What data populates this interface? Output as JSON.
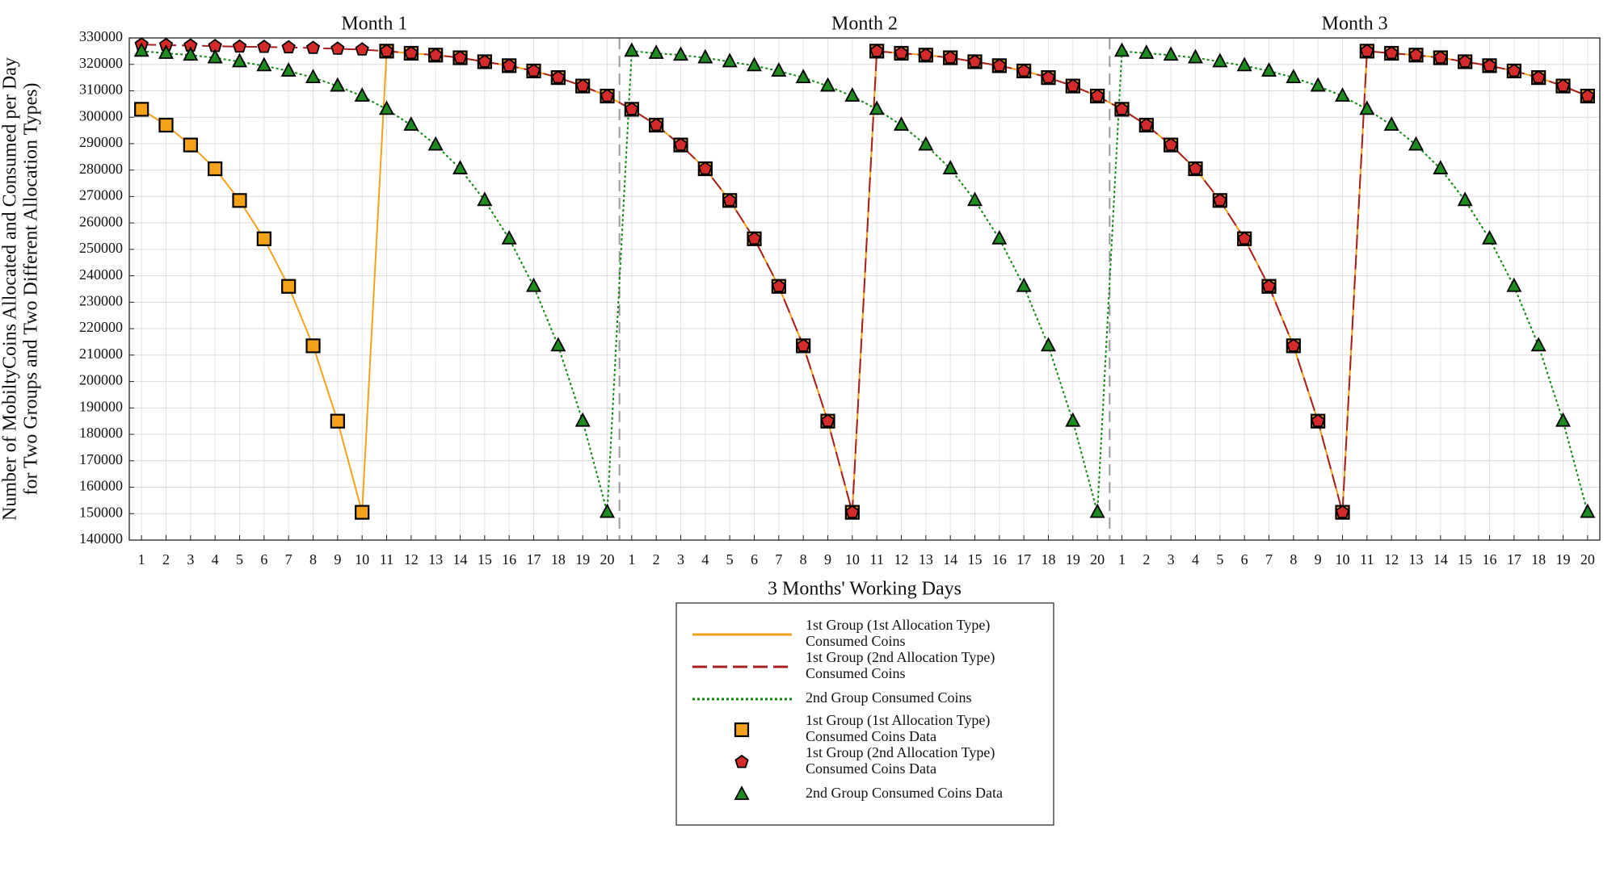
{
  "chart_data": {
    "type": "line",
    "panels": [
      "Month 1",
      "Month 2",
      "Month 3"
    ],
    "xlabel": "3 Months' Working Days",
    "ylabel": [
      "Number of MobiltyCoins Allocated and Consumed per Day",
      "for Two Groups and Two Different Allocation Types)"
    ],
    "categories": [
      1,
      2,
      3,
      4,
      5,
      6,
      7,
      8,
      9,
      10,
      11,
      12,
      13,
      14,
      15,
      16,
      17,
      18,
      19,
      20,
      1,
      2,
      3,
      4,
      5,
      6,
      7,
      8,
      9,
      10,
      11,
      12,
      13,
      14,
      15,
      16,
      17,
      18,
      19,
      20,
      1,
      2,
      3,
      4,
      5,
      6,
      7,
      8,
      9,
      10,
      11,
      12,
      13,
      14,
      15,
      16,
      17,
      18,
      19,
      20
    ],
    "ylim": [
      140000,
      330000
    ],
    "yticks": [
      140000,
      150000,
      160000,
      170000,
      180000,
      190000,
      200000,
      210000,
      220000,
      230000,
      240000,
      250000,
      260000,
      270000,
      280000,
      290000,
      300000,
      310000,
      320000,
      330000
    ],
    "grid": true,
    "series": [
      {
        "name": "1st Group (1st Allocation Type) Consumed Coins",
        "marker_name": "1st Group (1st Allocation Type) Consumed Coins Data",
        "color": "#f5a21b",
        "marker_color": "#f5a21b",
        "line_style": "solid",
        "marker": "square",
        "values": [
          303000,
          297000,
          289500,
          280500,
          268500,
          254000,
          236000,
          213500,
          185000,
          150500,
          325000,
          324200,
          323500,
          322500,
          321000,
          319500,
          317500,
          315000,
          311800,
          308000,
          303000,
          297000,
          289500,
          280500,
          268500,
          254000,
          236000,
          213500,
          185000,
          150500,
          325000,
          324200,
          323500,
          322500,
          321000,
          319500,
          317500,
          315000,
          311800,
          308000,
          303000,
          297000,
          289500,
          280500,
          268500,
          254000,
          236000,
          213500,
          185000,
          150500,
          325000,
          324200,
          323500,
          322500,
          321000,
          319500,
          317500,
          315000,
          311800,
          308000
        ]
      },
      {
        "name": "1st Group (2nd Allocation Type) Consumed Coins",
        "marker_name": "1st Group (2nd Allocation Type) Consumed Coins Data",
        "color": "#a52020",
        "marker_color": "#d42a2a",
        "line_style": "dashed",
        "marker": "pentagon",
        "values": [
          327500,
          327300,
          327100,
          326900,
          326700,
          326600,
          326400,
          326200,
          325900,
          325600,
          325000,
          324200,
          323500,
          322500,
          321000,
          319500,
          317500,
          315000,
          311800,
          308000,
          303000,
          297000,
          289500,
          280500,
          268500,
          254000,
          236000,
          213500,
          185000,
          150500,
          325000,
          324200,
          323500,
          322500,
          321000,
          319500,
          317500,
          315000,
          311800,
          308000,
          303000,
          297000,
          289500,
          280500,
          268500,
          254000,
          236000,
          213500,
          185000,
          150500,
          325000,
          324200,
          323500,
          322500,
          321000,
          319500,
          317500,
          315000,
          311800,
          308000
        ]
      },
      {
        "name": "2nd Group Consumed Coins",
        "marker_name": "2nd Group Consumed Coins Data",
        "color": "#118811",
        "marker_color": "#1f8a1f",
        "line_style": "dotted",
        "marker": "triangle",
        "values": [
          325000,
          324200,
          323500,
          322500,
          321000,
          319500,
          317500,
          315000,
          311800,
          308000,
          303000,
          297000,
          289500,
          280500,
          268500,
          254000,
          236000,
          213500,
          185000,
          150500,
          325000,
          324200,
          323500,
          322500,
          321000,
          319500,
          317500,
          315000,
          311800,
          308000,
          303000,
          297000,
          289500,
          280500,
          268500,
          254000,
          236000,
          213500,
          185000,
          150500,
          325000,
          324200,
          323500,
          322500,
          321000,
          319500,
          317500,
          315000,
          311800,
          308000,
          303000,
          297000,
          289500,
          280500,
          268500,
          254000,
          236000,
          213500,
          185000,
          150500
        ]
      }
    ]
  }
}
